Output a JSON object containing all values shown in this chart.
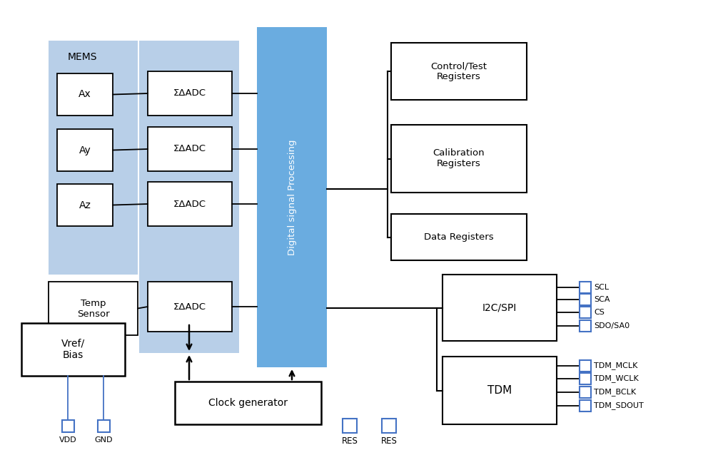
{
  "bg_color": "#ffffff",
  "mems_bg": "#b8cfe8",
  "adc_bg": "#b8cfe8",
  "dsp_bg": "#6aace0",
  "box_stroke": "#000000",
  "blue_stroke": "#4472c4",
  "mems_label": "MEMS",
  "mems_sensors": [
    "Ax",
    "Ay",
    "Az"
  ],
  "temp_label": "Temp\nSensor",
  "adc_label": "ΣΔADC",
  "dsp_label": "Digital signal Processing",
  "vref_label": "Vref/\nBias",
  "clock_label": "Clock generator",
  "ctrl_label": "Control/Test\nRegisters",
  "cal_label": "Calibration\nRegisters",
  "data_label": "Data Registers",
  "i2c_label": "I2C/SPI",
  "tdm_label": "TDM",
  "i2c_pins": [
    "SCL",
    "SCA",
    "CS",
    "SDO/SA0"
  ],
  "tdm_pins": [
    "TDM_MCLK",
    "TDM_WCLK",
    "TDM_BCLK",
    "TDM_SDOUT"
  ],
  "vdd_label": "VDD",
  "gnd_label": "GND",
  "res_label": "RES"
}
